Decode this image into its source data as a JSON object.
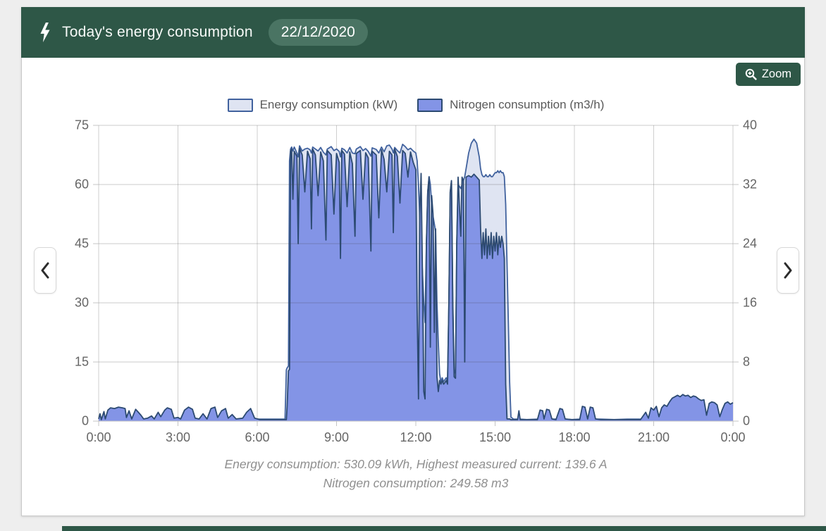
{
  "header": {
    "title": "Today's energy consumption",
    "date_badge": "22/12/2020"
  },
  "toolbar": {
    "zoom_label": "Zoom"
  },
  "icons": {
    "header_icon": "lightning-bolt",
    "zoom_button_icon": "magnifier-plus",
    "nav_prev_icon": "chevron-left",
    "nav_next_icon": "chevron-right"
  },
  "colors": {
    "header_green": "#2e5747",
    "badge_green": "#4a7463",
    "grid": "#cfcfcf",
    "axis_text": "#666666",
    "energy_fill": "#dfe4f2",
    "energy_stroke": "#41629e",
    "nitrogen_fill": "#8394e6",
    "nitrogen_stroke": "#2c4a72"
  },
  "footer": {
    "line1": "Energy consumption: 530.09 kWh, Highest measured current: 139.6 A",
    "line2": "Nitrogen consumption: 249.58 m3"
  },
  "chart_data": {
    "type": "area",
    "title": "Today's energy consumption 22/12/2020",
    "legend_position": "top",
    "grid": true,
    "x_axis": {
      "max_hours": 24,
      "tick_hours": [
        0,
        3,
        6,
        9,
        12,
        15,
        18,
        21,
        24
      ],
      "tick_labels": [
        "0:00",
        "3:00",
        "6:00",
        "9:00",
        "12:00",
        "15:00",
        "18:00",
        "21:00",
        "0:00"
      ]
    },
    "left_axis": {
      "label": "Energy consumption (kW)",
      "ticks": [
        0,
        15,
        30,
        45,
        60,
        75
      ],
      "min": 0,
      "max": 75
    },
    "right_axis": {
      "label": "Nitrogen consumption (m3/h)",
      "ticks": [
        0,
        8,
        16,
        24,
        32,
        40
      ],
      "min": 0,
      "max": 40
    },
    "series": [
      {
        "name": "Energy consumption (kW)",
        "axis": "left",
        "unit": "kW",
        "fill": "#dfe4f2",
        "stroke": "#41629e"
      },
      {
        "name": "Nitrogen consumption (m3/h)",
        "axis": "right",
        "unit": "m3/h",
        "fill": "#8394e6",
        "stroke": "#2c4a72"
      }
    ],
    "summary": {
      "energy_total_kwh": 530.09,
      "highest_current_a": 139.6,
      "nitrogen_total_m3": 249.58
    },
    "points_format": [
      "hour",
      "energy_kW",
      "nitrogen_m3h"
    ],
    "points": [
      [
        0.0,
        0.5,
        0.3
      ],
      [
        0.05,
        0.5,
        1.0
      ],
      [
        0.1,
        0.4,
        0.2
      ],
      [
        0.2,
        0.5,
        1.3
      ],
      [
        0.25,
        0.4,
        0.3
      ],
      [
        0.35,
        0.5,
        1.5
      ],
      [
        0.45,
        0.6,
        1.8
      ],
      [
        0.6,
        0.5,
        1.7
      ],
      [
        0.75,
        0.5,
        1.9
      ],
      [
        0.9,
        0.5,
        1.8
      ],
      [
        1.0,
        0.5,
        1.7
      ],
      [
        1.05,
        0.5,
        0.5
      ],
      [
        1.15,
        0.5,
        1.4
      ],
      [
        1.25,
        0.4,
        0.3
      ],
      [
        1.4,
        0.5,
        1.6
      ],
      [
        1.5,
        0.5,
        1.2
      ],
      [
        1.6,
        0.5,
        0.8
      ],
      [
        1.7,
        0.4,
        0.3
      ],
      [
        1.85,
        0.5,
        0.4
      ],
      [
        2.0,
        0.5,
        0.7
      ],
      [
        2.1,
        0.5,
        0.3
      ],
      [
        2.25,
        0.5,
        1.2
      ],
      [
        2.35,
        0.5,
        0.6
      ],
      [
        2.5,
        0.5,
        1.5
      ],
      [
        2.6,
        0.5,
        1.8
      ],
      [
        2.75,
        0.5,
        1.6
      ],
      [
        2.85,
        0.5,
        0.4
      ],
      [
        3.0,
        0.5,
        0.5
      ],
      [
        3.1,
        0.5,
        0.3
      ],
      [
        3.25,
        0.5,
        1.5
      ],
      [
        3.4,
        0.5,
        1.9
      ],
      [
        3.55,
        0.5,
        1.6
      ],
      [
        3.65,
        0.5,
        0.4
      ],
      [
        3.8,
        0.5,
        0.3
      ],
      [
        3.95,
        0.5,
        1.0
      ],
      [
        4.1,
        0.5,
        0.3
      ],
      [
        4.25,
        0.5,
        1.7
      ],
      [
        4.4,
        0.5,
        1.9
      ],
      [
        4.5,
        0.5,
        0.5
      ],
      [
        4.65,
        0.5,
        1.4
      ],
      [
        4.8,
        0.5,
        1.7
      ],
      [
        4.9,
        0.5,
        0.4
      ],
      [
        5.05,
        0.5,
        0.9
      ],
      [
        5.2,
        0.5,
        0.3
      ],
      [
        5.45,
        0.5,
        0.4
      ],
      [
        5.6,
        0.5,
        1.2
      ],
      [
        5.75,
        0.5,
        1.7
      ],
      [
        5.9,
        0.5,
        0.4
      ],
      [
        6.1,
        0.5,
        0.2
      ],
      [
        6.5,
        0.5,
        0.2
      ],
      [
        6.9,
        0.5,
        0.2
      ],
      [
        7.05,
        0.5,
        0.2
      ],
      [
        7.1,
        13,
        0.2
      ],
      [
        7.13,
        13.5,
        2
      ],
      [
        7.18,
        14,
        6.8
      ],
      [
        7.22,
        66,
        7
      ],
      [
        7.26,
        69,
        36.5
      ],
      [
        7.3,
        69.5,
        36.8
      ],
      [
        7.35,
        68.5,
        30
      ],
      [
        7.4,
        69.5,
        36.5
      ],
      [
        7.5,
        68,
        35.8
      ],
      [
        7.55,
        67,
        24
      ],
      [
        7.6,
        69.8,
        36.9
      ],
      [
        7.7,
        68.5,
        36
      ],
      [
        7.8,
        69,
        31
      ],
      [
        7.9,
        69.2,
        36.5
      ],
      [
        8.0,
        68.8,
        35.5
      ],
      [
        8.05,
        68,
        26
      ],
      [
        8.1,
        69.5,
        36.8
      ],
      [
        8.2,
        69,
        36
      ],
      [
        8.3,
        68.5,
        30.5
      ],
      [
        8.4,
        69.4,
        36.4
      ],
      [
        8.5,
        68.2,
        35.2
      ],
      [
        8.6,
        67.5,
        24.5
      ],
      [
        8.65,
        69,
        36.6
      ],
      [
        8.8,
        69.6,
        36
      ],
      [
        8.9,
        68.6,
        28
      ],
      [
        9.0,
        69,
        36.2
      ],
      [
        9.1,
        68.4,
        35
      ],
      [
        9.15,
        67,
        22
      ],
      [
        9.2,
        69.2,
        36.6
      ],
      [
        9.3,
        68.8,
        36.1
      ],
      [
        9.4,
        68,
        29
      ],
      [
        9.5,
        69.4,
        36.4
      ],
      [
        9.6,
        68,
        34.8
      ],
      [
        9.7,
        67.8,
        25
      ],
      [
        9.75,
        69,
        36.2
      ],
      [
        9.9,
        69.6,
        36.6
      ],
      [
        10.0,
        68.6,
        30
      ],
      [
        10.1,
        69.1,
        36.3
      ],
      [
        10.2,
        68.4,
        35.6
      ],
      [
        10.3,
        67.2,
        23
      ],
      [
        10.35,
        69.3,
        36.5
      ],
      [
        10.5,
        68.9,
        36
      ],
      [
        10.6,
        68,
        27.5
      ],
      [
        10.7,
        69.5,
        36.7
      ],
      [
        10.8,
        68.3,
        35.4
      ],
      [
        10.9,
        69.8,
        31
      ],
      [
        11.0,
        70,
        36.5
      ],
      [
        11.1,
        69,
        36
      ],
      [
        11.15,
        68,
        25.5
      ],
      [
        11.2,
        69.4,
        36.8
      ],
      [
        11.3,
        68.6,
        35.8
      ],
      [
        11.4,
        68,
        29.5
      ],
      [
        11.5,
        70.2,
        36.6
      ],
      [
        11.6,
        69.6,
        36.2
      ],
      [
        11.7,
        68.8,
        33
      ],
      [
        11.8,
        69.2,
        36.4
      ],
      [
        11.9,
        68.5,
        35
      ],
      [
        12.0,
        68,
        34
      ],
      [
        12.05,
        66,
        15
      ],
      [
        12.1,
        60,
        3
      ],
      [
        12.15,
        52,
        28
      ],
      [
        12.2,
        45,
        33.5
      ],
      [
        12.25,
        38,
        20
      ],
      [
        12.3,
        30,
        4
      ],
      [
        12.35,
        25,
        3
      ],
      [
        12.4,
        45,
        24
      ],
      [
        12.45,
        58,
        31
      ],
      [
        12.5,
        62,
        33
      ],
      [
        12.55,
        60,
        10
      ],
      [
        12.6,
        55,
        30.5
      ],
      [
        12.65,
        52,
        28
      ],
      [
        12.7,
        50,
        12
      ],
      [
        12.75,
        48,
        26
      ],
      [
        12.8,
        30,
        6
      ],
      [
        12.85,
        20,
        4
      ],
      [
        12.9,
        12,
        5.5
      ],
      [
        12.95,
        10,
        5
      ],
      [
        13.0,
        11,
        5.5
      ],
      [
        13.05,
        10,
        5
      ],
      [
        13.1,
        10.5,
        5.2
      ],
      [
        13.15,
        11,
        5.5
      ],
      [
        13.2,
        10,
        5
      ],
      [
        13.25,
        30,
        16
      ],
      [
        13.3,
        58,
        31
      ],
      [
        13.35,
        61,
        32.5
      ],
      [
        13.4,
        30,
        15
      ],
      [
        13.45,
        13,
        6
      ],
      [
        13.5,
        12,
        5.8
      ],
      [
        13.55,
        45,
        24
      ],
      [
        13.6,
        60,
        33
      ],
      [
        13.7,
        59,
        25
      ],
      [
        13.75,
        60,
        33
      ],
      [
        13.8,
        61,
        32.5
      ],
      [
        13.85,
        62,
        8
      ],
      [
        13.9,
        64,
        33
      ],
      [
        14.0,
        68,
        33.2
      ],
      [
        14.1,
        70.5,
        33
      ],
      [
        14.2,
        71.5,
        33.4
      ],
      [
        14.3,
        70.5,
        33
      ],
      [
        14.4,
        67,
        32.6
      ],
      [
        14.45,
        64,
        26
      ],
      [
        14.5,
        62.5,
        22
      ],
      [
        14.55,
        62,
        25.5
      ],
      [
        14.6,
        62,
        22.5
      ],
      [
        14.65,
        62.5,
        26
      ],
      [
        14.7,
        62,
        22
      ],
      [
        14.75,
        62,
        25
      ],
      [
        14.8,
        62.5,
        22.5
      ],
      [
        14.85,
        62,
        25.5
      ],
      [
        14.9,
        62,
        22
      ],
      [
        14.95,
        62.5,
        25
      ],
      [
        15.0,
        63,
        23
      ],
      [
        15.05,
        63,
        25.5
      ],
      [
        15.1,
        63.5,
        22.5
      ],
      [
        15.15,
        63,
        25
      ],
      [
        15.2,
        63.5,
        23.5
      ],
      [
        15.25,
        63,
        25
      ],
      [
        15.3,
        63,
        24
      ],
      [
        15.35,
        62,
        22
      ],
      [
        15.4,
        55,
        5
      ],
      [
        15.45,
        40,
        0.3
      ],
      [
        15.5,
        25,
        0.3
      ],
      [
        15.55,
        10,
        0.3
      ],
      [
        15.6,
        1,
        0.2
      ],
      [
        15.7,
        0.5,
        0.2
      ],
      [
        15.85,
        0.5,
        0.2
      ],
      [
        15.9,
        0.5,
        1.4
      ],
      [
        15.95,
        0.5,
        0.2
      ],
      [
        16.2,
        0.4,
        0.2
      ],
      [
        16.6,
        0.5,
        0.2
      ],
      [
        16.7,
        0.5,
        1.5
      ],
      [
        16.8,
        0.5,
        1.4
      ],
      [
        16.85,
        0.5,
        0.3
      ],
      [
        16.95,
        0.5,
        1.6
      ],
      [
        17.05,
        0.5,
        1.5
      ],
      [
        17.15,
        0.5,
        0.3
      ],
      [
        17.3,
        0.5,
        0.2
      ],
      [
        17.45,
        0.5,
        1.7
      ],
      [
        17.55,
        0.5,
        1.6
      ],
      [
        17.65,
        0.5,
        0.3
      ],
      [
        17.9,
        0.4,
        0.2
      ],
      [
        18.2,
        0.5,
        0.2
      ],
      [
        18.3,
        0.5,
        2.0
      ],
      [
        18.4,
        0.5,
        1.9
      ],
      [
        18.5,
        0.5,
        0.3
      ],
      [
        18.6,
        0.5,
        1.9
      ],
      [
        18.7,
        0.5,
        1.8
      ],
      [
        18.8,
        0.5,
        0.3
      ],
      [
        19.0,
        0.5,
        0.2
      ],
      [
        19.5,
        0.4,
        0.2
      ],
      [
        20.0,
        0.5,
        0.2
      ],
      [
        20.5,
        0.5,
        0.2
      ],
      [
        20.7,
        0.5,
        1.2
      ],
      [
        20.8,
        0.5,
        0.4
      ],
      [
        20.9,
        0.5,
        1.8
      ],
      [
        21.0,
        0.5,
        1.5
      ],
      [
        21.1,
        0.5,
        2.0
      ],
      [
        21.2,
        0.5,
        0.6
      ],
      [
        21.3,
        0.5,
        1.8
      ],
      [
        21.4,
        0.5,
        2.2
      ],
      [
        21.5,
        0.5,
        2.0
      ],
      [
        21.6,
        0.5,
        2.6
      ],
      [
        21.7,
        0.5,
        3.1
      ],
      [
        21.8,
        0.5,
        3.3
      ],
      [
        21.9,
        0.5,
        3.5
      ],
      [
        22.0,
        0.5,
        3.3
      ],
      [
        22.1,
        0.5,
        3.6
      ],
      [
        22.2,
        0.5,
        3.4
      ],
      [
        22.3,
        0.5,
        3.5
      ],
      [
        22.4,
        0.5,
        3.2
      ],
      [
        22.5,
        0.5,
        3.4
      ],
      [
        22.6,
        0.5,
        3.3
      ],
      [
        22.7,
        0.5,
        3.0
      ],
      [
        22.8,
        0.5,
        2.8
      ],
      [
        22.9,
        0.5,
        2.9
      ],
      [
        23.0,
        0.5,
        0.8
      ],
      [
        23.1,
        0.5,
        2.4
      ],
      [
        23.2,
        0.5,
        2.6
      ],
      [
        23.3,
        0.5,
        2.5
      ],
      [
        23.4,
        0.5,
        2.2
      ],
      [
        23.5,
        0.5,
        0.6
      ],
      [
        23.6,
        0.5,
        1.6
      ],
      [
        23.7,
        0.5,
        2.4
      ],
      [
        23.8,
        0.5,
        2.6
      ],
      [
        23.9,
        0.5,
        2.3
      ],
      [
        24.0,
        0.5,
        2.5
      ]
    ]
  }
}
